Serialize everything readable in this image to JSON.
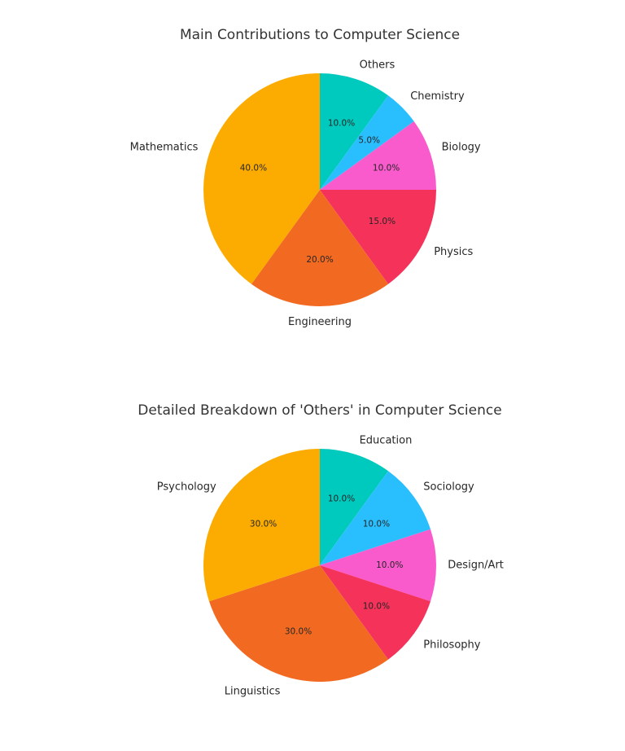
{
  "chart_data": [
    {
      "type": "pie",
      "title": "Main Contributions to Computer Science",
      "start_angle_deg": 90,
      "direction": "clockwise",
      "slices": [
        {
          "label": "Others",
          "value": 10.0,
          "pct_label": "10.0%",
          "color": "#00C9BD"
        },
        {
          "label": "Chemistry",
          "value": 5.0,
          "pct_label": "5.0%",
          "color": "#29BFFF"
        },
        {
          "label": "Biology",
          "value": 10.0,
          "pct_label": "10.0%",
          "color": "#F95BCC"
        },
        {
          "label": "Physics",
          "value": 15.0,
          "pct_label": "15.0%",
          "color": "#F4325A"
        },
        {
          "label": "Engineering",
          "value": 20.0,
          "pct_label": "20.0%",
          "color": "#F26A21"
        },
        {
          "label": "Mathematics",
          "value": 40.0,
          "pct_label": "40.0%",
          "color": "#FCAC00"
        }
      ]
    },
    {
      "type": "pie",
      "title": "Detailed Breakdown of 'Others' in Computer Science",
      "start_angle_deg": 90,
      "direction": "clockwise",
      "slices": [
        {
          "label": "Education",
          "value": 10.0,
          "pct_label": "10.0%",
          "color": "#00C9BD"
        },
        {
          "label": "Sociology",
          "value": 10.0,
          "pct_label": "10.0%",
          "color": "#29BFFF"
        },
        {
          "label": "Design/Art",
          "value": 10.0,
          "pct_label": "10.0%",
          "color": "#F95BCC"
        },
        {
          "label": "Philosophy",
          "value": 10.0,
          "pct_label": "10.0%",
          "color": "#F4325A"
        },
        {
          "label": "Linguistics",
          "value": 30.0,
          "pct_label": "30.0%",
          "color": "#F26A21"
        },
        {
          "label": "Psychology",
          "value": 30.0,
          "pct_label": "30.0%",
          "color": "#FCAC00"
        }
      ]
    }
  ]
}
